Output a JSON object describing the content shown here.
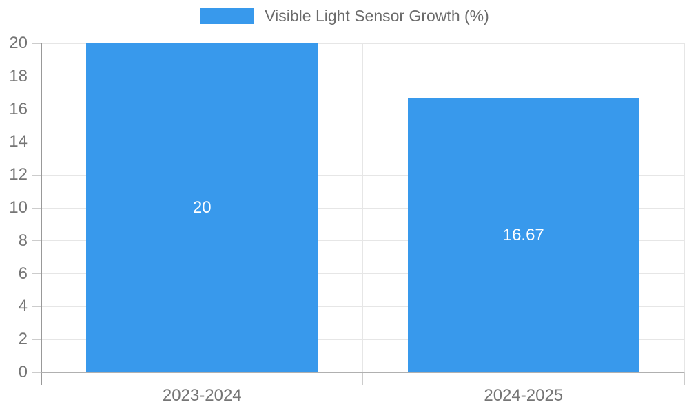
{
  "legend": {
    "label": "Visible Light Sensor Growth (%)",
    "swatch_color": "#3899EC"
  },
  "chart_data": {
    "type": "bar",
    "title": "Visible Light Sensor Growth (%)",
    "categories": [
      "2023-2024",
      "2024-2025"
    ],
    "values": [
      20,
      16.67
    ],
    "value_labels": [
      "20",
      "16.67"
    ],
    "xlabel": "",
    "ylabel": "",
    "ylim": [
      0,
      20
    ],
    "ytick_step": 2,
    "ytick_labels": [
      "0",
      "2",
      "4",
      "6",
      "8",
      "10",
      "12",
      "14",
      "16",
      "18",
      "20"
    ],
    "grid": true,
    "legend_position": "top-center",
    "colors": {
      "bar": "#3899EC",
      "value_label": "#ffffff",
      "grid": "#e6e6e6",
      "tick_stub": "#cccccc",
      "axis_y": "#999999",
      "axis_x": "#b0b0b0",
      "tick_text": "#757575",
      "legend_text": "#6b6b6b",
      "background": "#ffffff"
    }
  }
}
